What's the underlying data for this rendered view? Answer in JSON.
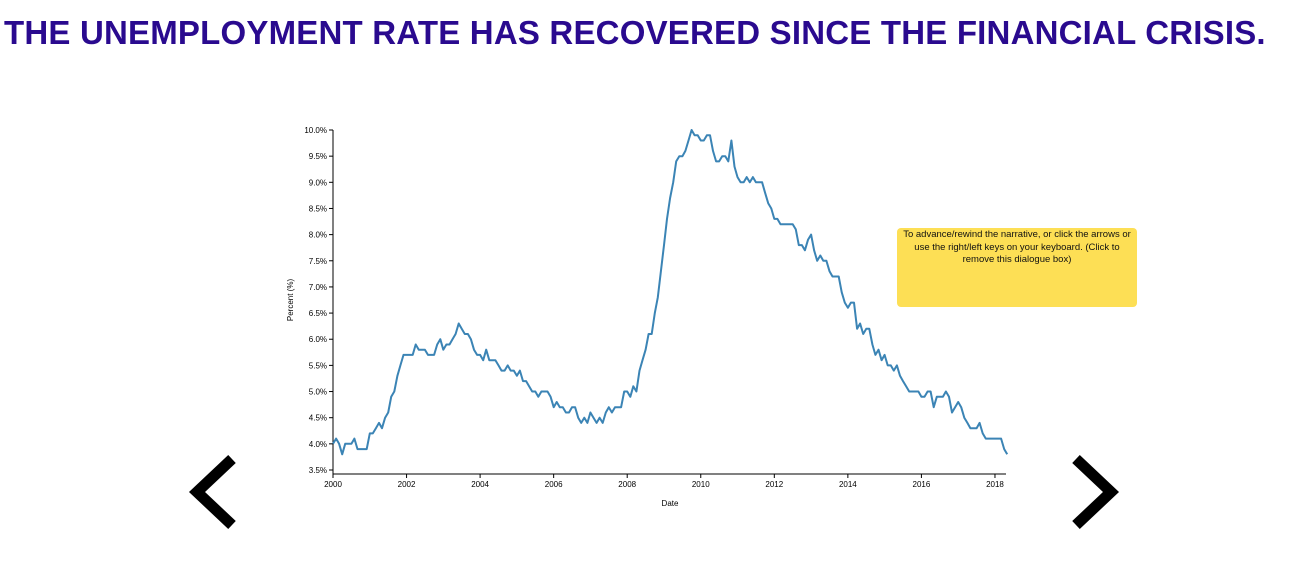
{
  "headline": "THE UNEMPLOYMENT RATE HAS RECOVERED SINCE THE FINANCIAL CRISIS.",
  "dialog": {
    "text": "To advance/rewind the narrative, or click the arrows or use the right/left keys on your keyboard. (Click to remove this dialogue box)"
  },
  "colors": {
    "headline": "#2a0a8f",
    "line": "#3b84b5",
    "dialog_bg": "#fddf55",
    "arrow": "#000000"
  },
  "icons": {
    "prev": "chevron-left-icon",
    "next": "chevron-right-icon"
  },
  "chart_data": {
    "type": "line",
    "title": "",
    "xlabel": "Date",
    "ylabel": "Percent (%)",
    "xlim": [
      2000.0,
      2018.3
    ],
    "ylim": [
      3.5,
      10.0
    ],
    "grid": false,
    "x_ticks": [
      "2000",
      "2002",
      "2004",
      "2006",
      "2008",
      "2010",
      "2012",
      "2014",
      "2016",
      "2018"
    ],
    "y_ticks": [
      "3.5%",
      "4.0%",
      "4.5%",
      "5.0%",
      "5.5%",
      "6.0%",
      "6.5%",
      "7.0%",
      "7.5%",
      "8.0%",
      "8.5%",
      "9.0%",
      "9.5%",
      "10.0%"
    ],
    "series": [
      {
        "name": "",
        "points": [
          [
            2000.0,
            4.0
          ],
          [
            2000.083,
            4.1
          ],
          [
            2000.167,
            4.0
          ],
          [
            2000.25,
            3.8
          ],
          [
            2000.333,
            4.0
          ],
          [
            2000.417,
            4.0
          ],
          [
            2000.5,
            4.0
          ],
          [
            2000.583,
            4.1
          ],
          [
            2000.667,
            3.9
          ],
          [
            2000.75,
            3.9
          ],
          [
            2000.833,
            3.9
          ],
          [
            2000.917,
            3.9
          ],
          [
            2001.0,
            4.2
          ],
          [
            2001.083,
            4.2
          ],
          [
            2001.167,
            4.3
          ],
          [
            2001.25,
            4.4
          ],
          [
            2001.333,
            4.3
          ],
          [
            2001.417,
            4.5
          ],
          [
            2001.5,
            4.6
          ],
          [
            2001.583,
            4.9
          ],
          [
            2001.667,
            5.0
          ],
          [
            2001.75,
            5.3
          ],
          [
            2001.833,
            5.5
          ],
          [
            2001.917,
            5.7
          ],
          [
            2002.0,
            5.7
          ],
          [
            2002.083,
            5.7
          ],
          [
            2002.167,
            5.7
          ],
          [
            2002.25,
            5.9
          ],
          [
            2002.333,
            5.8
          ],
          [
            2002.417,
            5.8
          ],
          [
            2002.5,
            5.8
          ],
          [
            2002.583,
            5.7
          ],
          [
            2002.667,
            5.7
          ],
          [
            2002.75,
            5.7
          ],
          [
            2002.833,
            5.9
          ],
          [
            2002.917,
            6.0
          ],
          [
            2003.0,
            5.8
          ],
          [
            2003.083,
            5.9
          ],
          [
            2003.167,
            5.9
          ],
          [
            2003.25,
            6.0
          ],
          [
            2003.333,
            6.1
          ],
          [
            2003.417,
            6.3
          ],
          [
            2003.5,
            6.2
          ],
          [
            2003.583,
            6.1
          ],
          [
            2003.667,
            6.1
          ],
          [
            2003.75,
            6.0
          ],
          [
            2003.833,
            5.8
          ],
          [
            2003.917,
            5.7
          ],
          [
            2004.0,
            5.7
          ],
          [
            2004.083,
            5.6
          ],
          [
            2004.167,
            5.8
          ],
          [
            2004.25,
            5.6
          ],
          [
            2004.333,
            5.6
          ],
          [
            2004.417,
            5.6
          ],
          [
            2004.5,
            5.5
          ],
          [
            2004.583,
            5.4
          ],
          [
            2004.667,
            5.4
          ],
          [
            2004.75,
            5.5
          ],
          [
            2004.833,
            5.4
          ],
          [
            2004.917,
            5.4
          ],
          [
            2005.0,
            5.3
          ],
          [
            2005.083,
            5.4
          ],
          [
            2005.167,
            5.2
          ],
          [
            2005.25,
            5.2
          ],
          [
            2005.333,
            5.1
          ],
          [
            2005.417,
            5.0
          ],
          [
            2005.5,
            5.0
          ],
          [
            2005.583,
            4.9
          ],
          [
            2005.667,
            5.0
          ],
          [
            2005.75,
            5.0
          ],
          [
            2005.833,
            5.0
          ],
          [
            2005.917,
            4.9
          ],
          [
            2006.0,
            4.7
          ],
          [
            2006.083,
            4.8
          ],
          [
            2006.167,
            4.7
          ],
          [
            2006.25,
            4.7
          ],
          [
            2006.333,
            4.6
          ],
          [
            2006.417,
            4.6
          ],
          [
            2006.5,
            4.7
          ],
          [
            2006.583,
            4.7
          ],
          [
            2006.667,
            4.5
          ],
          [
            2006.75,
            4.4
          ],
          [
            2006.833,
            4.5
          ],
          [
            2006.917,
            4.4
          ],
          [
            2007.0,
            4.6
          ],
          [
            2007.083,
            4.5
          ],
          [
            2007.167,
            4.4
          ],
          [
            2007.25,
            4.5
          ],
          [
            2007.333,
            4.4
          ],
          [
            2007.417,
            4.6
          ],
          [
            2007.5,
            4.7
          ],
          [
            2007.583,
            4.6
          ],
          [
            2007.667,
            4.7
          ],
          [
            2007.75,
            4.7
          ],
          [
            2007.833,
            4.7
          ],
          [
            2007.917,
            5.0
          ],
          [
            2008.0,
            5.0
          ],
          [
            2008.083,
            4.9
          ],
          [
            2008.167,
            5.1
          ],
          [
            2008.25,
            5.0
          ],
          [
            2008.333,
            5.4
          ],
          [
            2008.417,
            5.6
          ],
          [
            2008.5,
            5.8
          ],
          [
            2008.583,
            6.1
          ],
          [
            2008.667,
            6.1
          ],
          [
            2008.75,
            6.5
          ],
          [
            2008.833,
            6.8
          ],
          [
            2008.917,
            7.3
          ],
          [
            2009.0,
            7.8
          ],
          [
            2009.083,
            8.3
          ],
          [
            2009.167,
            8.7
          ],
          [
            2009.25,
            9.0
          ],
          [
            2009.333,
            9.4
          ],
          [
            2009.417,
            9.5
          ],
          [
            2009.5,
            9.5
          ],
          [
            2009.583,
            9.6
          ],
          [
            2009.667,
            9.8
          ],
          [
            2009.75,
            10.0
          ],
          [
            2009.833,
            9.9
          ],
          [
            2009.917,
            9.9
          ],
          [
            2010.0,
            9.8
          ],
          [
            2010.083,
            9.8
          ],
          [
            2010.167,
            9.9
          ],
          [
            2010.25,
            9.9
          ],
          [
            2010.333,
            9.6
          ],
          [
            2010.417,
            9.4
          ],
          [
            2010.5,
            9.4
          ],
          [
            2010.583,
            9.5
          ],
          [
            2010.667,
            9.5
          ],
          [
            2010.75,
            9.4
          ],
          [
            2010.833,
            9.8
          ],
          [
            2010.917,
            9.3
          ],
          [
            2011.0,
            9.1
          ],
          [
            2011.083,
            9.0
          ],
          [
            2011.167,
            9.0
          ],
          [
            2011.25,
            9.1
          ],
          [
            2011.333,
            9.0
          ],
          [
            2011.417,
            9.1
          ],
          [
            2011.5,
            9.0
          ],
          [
            2011.583,
            9.0
          ],
          [
            2011.667,
            9.0
          ],
          [
            2011.75,
            8.8
          ],
          [
            2011.833,
            8.6
          ],
          [
            2011.917,
            8.5
          ],
          [
            2012.0,
            8.3
          ],
          [
            2012.083,
            8.3
          ],
          [
            2012.167,
            8.2
          ],
          [
            2012.25,
            8.2
          ],
          [
            2012.333,
            8.2
          ],
          [
            2012.417,
            8.2
          ],
          [
            2012.5,
            8.2
          ],
          [
            2012.583,
            8.1
          ],
          [
            2012.667,
            7.8
          ],
          [
            2012.75,
            7.8
          ],
          [
            2012.833,
            7.7
          ],
          [
            2012.917,
            7.9
          ],
          [
            2013.0,
            8.0
          ],
          [
            2013.083,
            7.7
          ],
          [
            2013.167,
            7.5
          ],
          [
            2013.25,
            7.6
          ],
          [
            2013.333,
            7.5
          ],
          [
            2013.417,
            7.5
          ],
          [
            2013.5,
            7.3
          ],
          [
            2013.583,
            7.2
          ],
          [
            2013.667,
            7.2
          ],
          [
            2013.75,
            7.2
          ],
          [
            2013.833,
            6.9
          ],
          [
            2013.917,
            6.7
          ],
          [
            2014.0,
            6.6
          ],
          [
            2014.083,
            6.7
          ],
          [
            2014.167,
            6.7
          ],
          [
            2014.25,
            6.2
          ],
          [
            2014.333,
            6.3
          ],
          [
            2014.417,
            6.1
          ],
          [
            2014.5,
            6.2
          ],
          [
            2014.583,
            6.2
          ],
          [
            2014.667,
            5.9
          ],
          [
            2014.75,
            5.7
          ],
          [
            2014.833,
            5.8
          ],
          [
            2014.917,
            5.6
          ],
          [
            2015.0,
            5.7
          ],
          [
            2015.083,
            5.5
          ],
          [
            2015.167,
            5.5
          ],
          [
            2015.25,
            5.4
          ],
          [
            2015.333,
            5.5
          ],
          [
            2015.417,
            5.3
          ],
          [
            2015.5,
            5.2
          ],
          [
            2015.583,
            5.1
          ],
          [
            2015.667,
            5.0
          ],
          [
            2015.75,
            5.0
          ],
          [
            2015.833,
            5.0
          ],
          [
            2015.917,
            5.0
          ],
          [
            2016.0,
            4.9
          ],
          [
            2016.083,
            4.9
          ],
          [
            2016.167,
            5.0
          ],
          [
            2016.25,
            5.0
          ],
          [
            2016.333,
            4.7
          ],
          [
            2016.417,
            4.9
          ],
          [
            2016.5,
            4.9
          ],
          [
            2016.583,
            4.9
          ],
          [
            2016.667,
            5.0
          ],
          [
            2016.75,
            4.9
          ],
          [
            2016.833,
            4.6
          ],
          [
            2016.917,
            4.7
          ],
          [
            2017.0,
            4.8
          ],
          [
            2017.083,
            4.7
          ],
          [
            2017.167,
            4.5
          ],
          [
            2017.25,
            4.4
          ],
          [
            2017.333,
            4.3
          ],
          [
            2017.417,
            4.3
          ],
          [
            2017.5,
            4.3
          ],
          [
            2017.583,
            4.4
          ],
          [
            2017.667,
            4.2
          ],
          [
            2017.75,
            4.1
          ],
          [
            2017.833,
            4.1
          ],
          [
            2017.917,
            4.1
          ],
          [
            2018.0,
            4.1
          ],
          [
            2018.083,
            4.1
          ],
          [
            2018.167,
            4.1
          ],
          [
            2018.25,
            3.9
          ],
          [
            2018.333,
            3.8
          ]
        ]
      }
    ]
  }
}
